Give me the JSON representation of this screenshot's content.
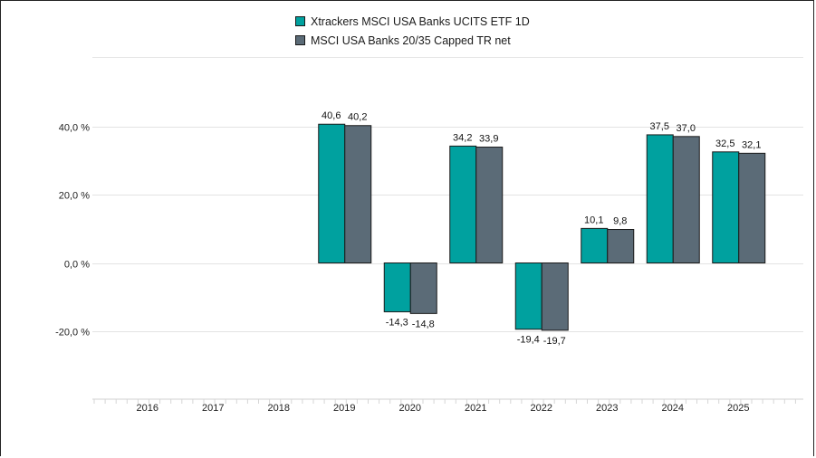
{
  "chart_data": {
    "type": "bar",
    "categories": [
      "2016",
      "2017",
      "2018",
      "2019",
      "2020",
      "2021",
      "2022",
      "2023",
      "2024",
      "2025"
    ],
    "series": [
      {
        "name": "Xtrackers MSCI USA Banks UCITS ETF 1D",
        "color": "#00a19f",
        "values": [
          null,
          null,
          null,
          40.6,
          -14.3,
          34.2,
          -19.4,
          10.1,
          37.5,
          32.5
        ],
        "labels": [
          "",
          "",
          "",
          "40,6",
          "-14,3",
          "34,2",
          "-19,4",
          "10,1",
          "37,5",
          "32,5"
        ]
      },
      {
        "name": "MSCI USA Banks 20/35 Capped TR net",
        "color": "#5b6b77",
        "values": [
          null,
          null,
          null,
          40.2,
          -14.8,
          33.9,
          -19.7,
          9.8,
          37.0,
          32.1
        ],
        "labels": [
          "",
          "",
          "",
          "40,2",
          "-14,8",
          "33,9",
          "-19,7",
          "9,8",
          "37,0",
          "32,1"
        ]
      }
    ],
    "yticks": [
      {
        "value": 40,
        "label": "40,0 %"
      },
      {
        "value": 20,
        "label": "20,0 %"
      },
      {
        "value": 0,
        "label": "0,0 %"
      },
      {
        "value": -20,
        "label": "-20,0 %"
      }
    ],
    "ylim": [
      -40,
      60
    ],
    "grid": true,
    "legend_position": "top-center"
  }
}
